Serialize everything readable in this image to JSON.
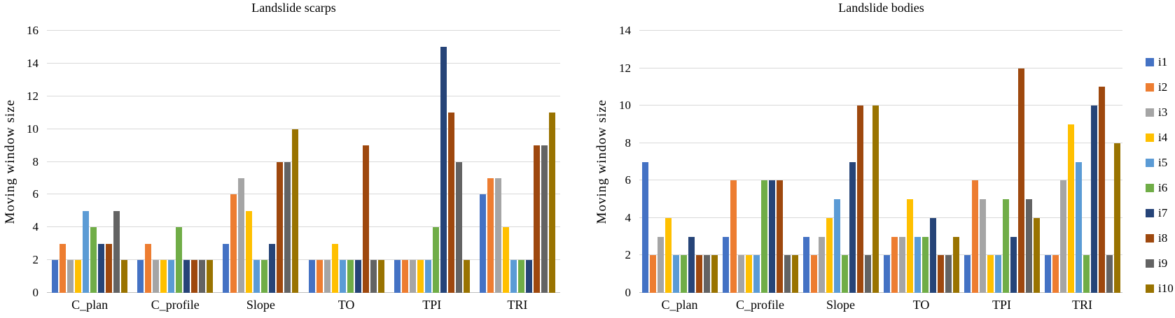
{
  "figure": {
    "y_axis_label": "Moving window size"
  },
  "legend": {
    "position": "right",
    "entries": [
      {
        "label": "i1",
        "color": "#4472C4"
      },
      {
        "label": "i2",
        "color": "#ED7D31"
      },
      {
        "label": "i3",
        "color": "#A5A5A5"
      },
      {
        "label": "i4",
        "color": "#FFC000"
      },
      {
        "label": "i5",
        "color": "#5B9BD5"
      },
      {
        "label": "i6",
        "color": "#70AD47"
      },
      {
        "label": "i7",
        "color": "#264478"
      },
      {
        "label": "i8",
        "color": "#9E480E"
      },
      {
        "label": "i9",
        "color": "#636363"
      },
      {
        "label": "i10",
        "color": "#997300"
      }
    ]
  },
  "chart_data": [
    {
      "type": "bar",
      "title": "Landslide scarps",
      "xlabel": "",
      "ylabel": "Moving window size",
      "ylim": [
        0,
        16
      ],
      "ytick_step": 2,
      "yticks": [
        0,
        2,
        4,
        6,
        8,
        10,
        12,
        14,
        16
      ],
      "grid": true,
      "legend_position": "right",
      "categories": [
        "C_plan",
        "C_profile",
        "Slope",
        "TO",
        "TPI",
        "TRI"
      ],
      "series": [
        {
          "name": "i1",
          "color": "#4472C4",
          "values": [
            2,
            2,
            3,
            2,
            2,
            6
          ]
        },
        {
          "name": "i2",
          "color": "#ED7D31",
          "values": [
            3,
            3,
            6,
            2,
            2,
            7
          ]
        },
        {
          "name": "i3",
          "color": "#A5A5A5",
          "values": [
            2,
            2,
            7,
            2,
            2,
            7
          ]
        },
        {
          "name": "i4",
          "color": "#FFC000",
          "values": [
            2,
            2,
            5,
            3,
            2,
            4
          ]
        },
        {
          "name": "i5",
          "color": "#5B9BD5",
          "values": [
            5,
            2,
            2,
            2,
            2,
            2
          ]
        },
        {
          "name": "i6",
          "color": "#70AD47",
          "values": [
            4,
            4,
            2,
            2,
            4,
            2
          ]
        },
        {
          "name": "i7",
          "color": "#264478",
          "values": [
            3,
            2,
            3,
            2,
            15,
            2
          ]
        },
        {
          "name": "i8",
          "color": "#9E480E",
          "values": [
            3,
            2,
            8,
            9,
            11,
            9
          ]
        },
        {
          "name": "i9",
          "color": "#636363",
          "values": [
            5,
            2,
            8,
            2,
            8,
            9
          ]
        },
        {
          "name": "i10",
          "color": "#997300",
          "values": [
            2,
            2,
            10,
            2,
            2,
            11
          ]
        }
      ]
    },
    {
      "type": "bar",
      "title": "Landslide bodies",
      "xlabel": "",
      "ylabel": "Moving window size",
      "ylim": [
        0,
        14
      ],
      "ytick_step": 2,
      "yticks": [
        0,
        2,
        4,
        6,
        8,
        10,
        12,
        14
      ],
      "grid": true,
      "legend_position": "right",
      "categories": [
        "C_plan",
        "C_profile",
        "Slope",
        "TO",
        "TPI",
        "TRI"
      ],
      "series": [
        {
          "name": "i1",
          "color": "#4472C4",
          "values": [
            7,
            3,
            3,
            2,
            2,
            2
          ]
        },
        {
          "name": "i2",
          "color": "#ED7D31",
          "values": [
            2,
            6,
            2,
            3,
            6,
            2
          ]
        },
        {
          "name": "i3",
          "color": "#A5A5A5",
          "values": [
            3,
            2,
            3,
            3,
            5,
            6
          ]
        },
        {
          "name": "i4",
          "color": "#FFC000",
          "values": [
            4,
            2,
            4,
            5,
            2,
            9
          ]
        },
        {
          "name": "i5",
          "color": "#5B9BD5",
          "values": [
            2,
            2,
            5,
            3,
            2,
            7
          ]
        },
        {
          "name": "i6",
          "color": "#70AD47",
          "values": [
            2,
            6,
            2,
            3,
            5,
            2
          ]
        },
        {
          "name": "i7",
          "color": "#264478",
          "values": [
            3,
            6,
            7,
            4,
            3,
            10
          ]
        },
        {
          "name": "i8",
          "color": "#9E480E",
          "values": [
            2,
            6,
            10,
            2,
            12,
            11
          ]
        },
        {
          "name": "i9",
          "color": "#636363",
          "values": [
            2,
            2,
            2,
            2,
            5,
            2
          ]
        },
        {
          "name": "i10",
          "color": "#997300",
          "values": [
            2,
            2,
            10,
            3,
            4,
            8
          ]
        }
      ]
    }
  ]
}
